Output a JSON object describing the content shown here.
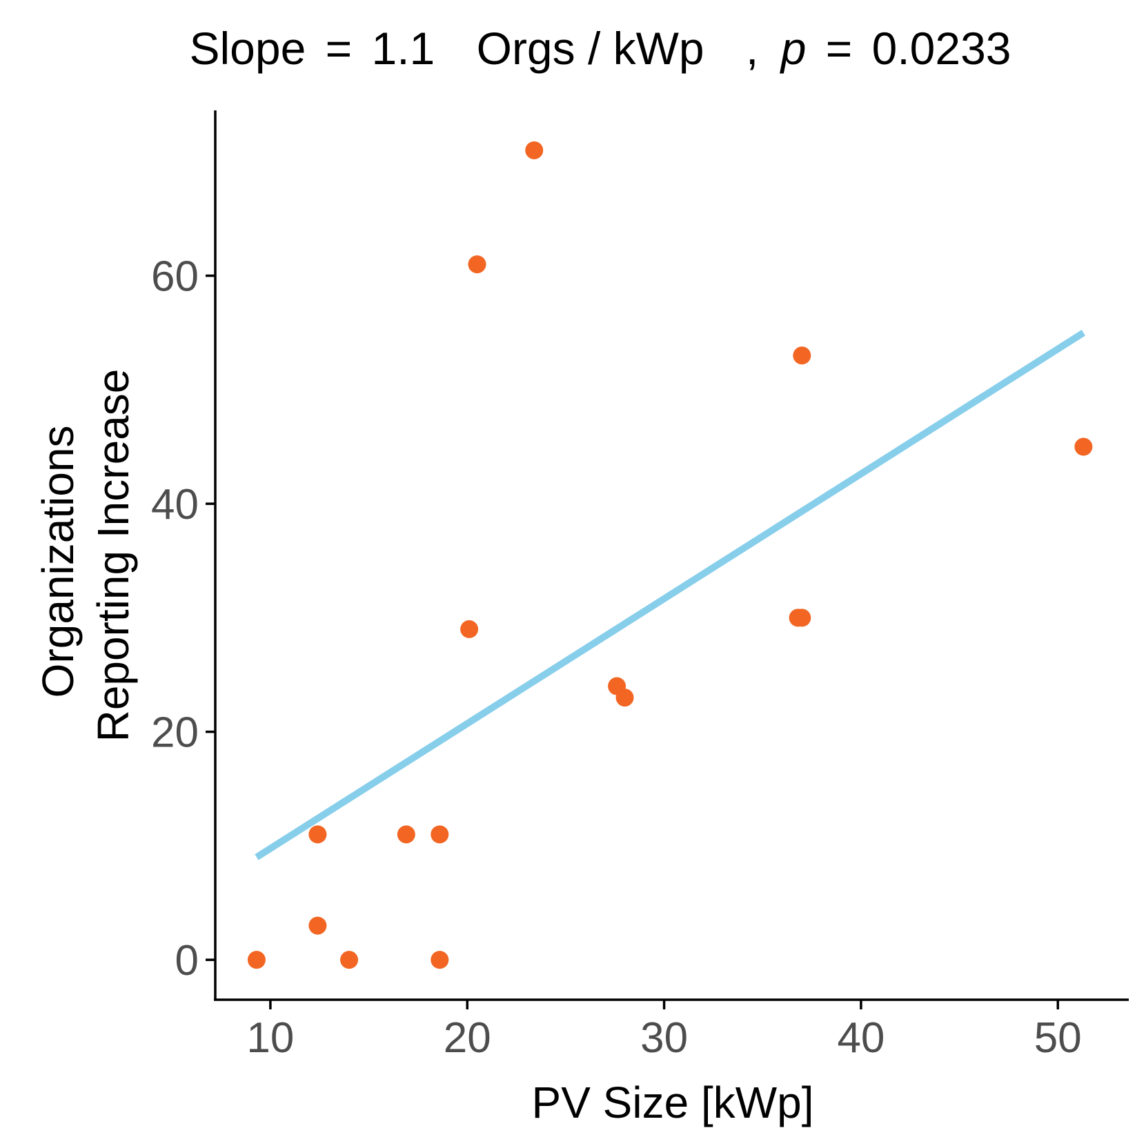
{
  "chart_data": {
    "type": "scatter",
    "title": {
      "slope_label": "Slope",
      "equals": "=",
      "slope_value": "1.1",
      "slope_unit": "Orgs / kWp",
      "separator": ",",
      "p_label": "p",
      "p_value": "0.0233"
    },
    "xlabel": "PV Size [kWp]",
    "ylabel_lines": [
      "Organizations",
      "Reporting Increase"
    ],
    "xlim": [
      7.2,
      53.6
    ],
    "ylim": [
      -3.5,
      74.5
    ],
    "x_ticks": [
      10,
      20,
      30,
      40,
      50
    ],
    "y_ticks": [
      0,
      20,
      40,
      60
    ],
    "points": [
      {
        "x": 9.3,
        "y": 0
      },
      {
        "x": 12.4,
        "y": 11
      },
      {
        "x": 12.4,
        "y": 3
      },
      {
        "x": 14.0,
        "y": 0
      },
      {
        "x": 16.9,
        "y": 11
      },
      {
        "x": 18.6,
        "y": 11
      },
      {
        "x": 18.6,
        "y": 0
      },
      {
        "x": 20.1,
        "y": 29
      },
      {
        "x": 20.5,
        "y": 61
      },
      {
        "x": 23.4,
        "y": 71
      },
      {
        "x": 27.6,
        "y": 24
      },
      {
        "x": 28.0,
        "y": 23
      },
      {
        "x": 36.8,
        "y": 30
      },
      {
        "x": 37.0,
        "y": 30
      },
      {
        "x": 37.0,
        "y": 53
      },
      {
        "x": 51.3,
        "y": 45
      }
    ],
    "fit_line": {
      "x": [
        9.3,
        51.3
      ],
      "y": [
        9.0,
        55.0
      ]
    },
    "colors": {
      "points": "#f26522",
      "fit_line": "#87ceeb",
      "axis": "#000000",
      "tick_labels": "#4d4d4d"
    }
  }
}
